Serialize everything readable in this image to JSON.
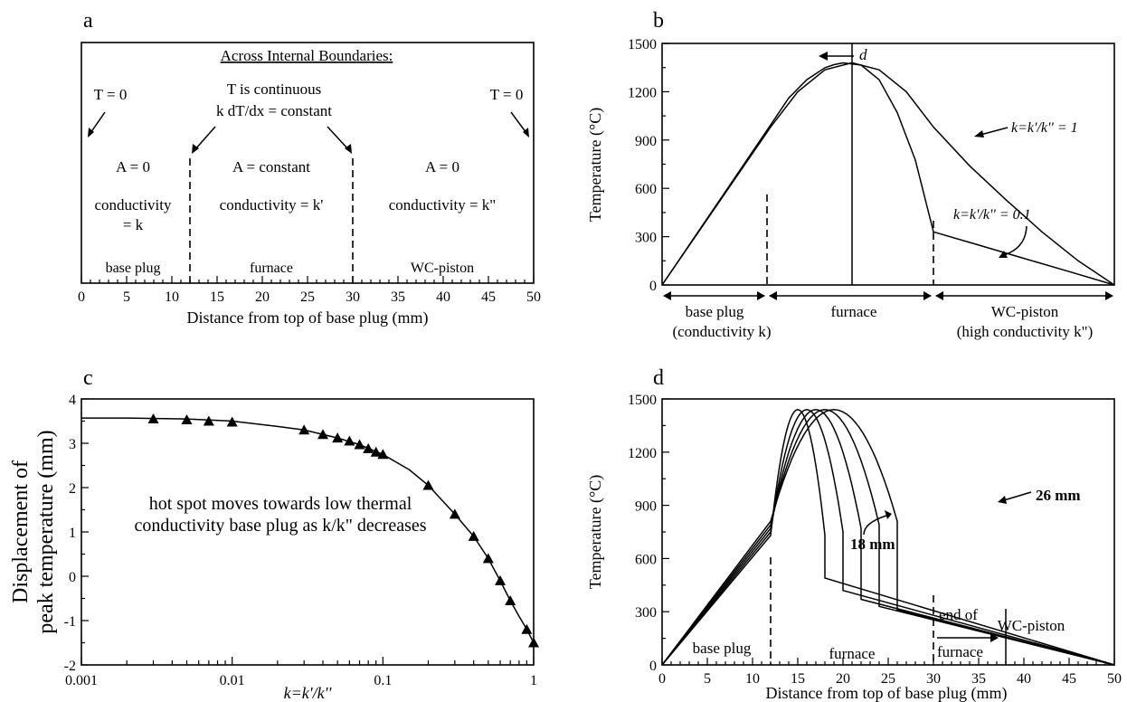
{
  "chart_data": [
    {
      "panel": "a",
      "type": "diagram",
      "xlabel": "Distance from top of base plug (mm)",
      "xlim": [
        0,
        50
      ],
      "xticks": [
        0,
        5,
        10,
        15,
        20,
        25,
        30,
        35,
        40,
        45,
        50
      ],
      "boundaries": [
        12,
        30
      ],
      "texts": {
        "header": "Across Internal Boundaries:",
        "t_left": "T = 0",
        "t_right": "T = 0",
        "cont1": "T is continuous",
        "cont2": "k dT/dx = constant",
        "plug_a": "A = 0",
        "plug_c1": "conductivity",
        "plug_c2": "= k",
        "furn_a": "A = constant",
        "furn_c": "conductivity = k'",
        "pist_a": "A = 0",
        "pist_c": "conductivity = k\"",
        "r_plug": "base plug",
        "r_furn": "furnace",
        "r_pist": "WC-piston"
      }
    },
    {
      "panel": "b",
      "type": "line",
      "ylabel": "Temperature (°C)",
      "xlim": [
        0,
        50
      ],
      "ylim": [
        0,
        1500
      ],
      "yticks": [
        0,
        300,
        600,
        900,
        1200,
        1500
      ],
      "boundaries": [
        12,
        30
      ],
      "marker_x": 21,
      "series": [
        {
          "name": "k=k'/k'' = 1",
          "x": [
            0,
            4,
            8,
            12,
            15,
            18,
            21,
            24,
            27,
            30,
            34,
            38,
            42,
            46,
            50
          ],
          "y": [
            0,
            327,
            654,
            981,
            1200,
            1336,
            1380,
            1336,
            1200,
            981,
            740,
            530,
            330,
            150,
            0
          ]
        },
        {
          "name": "k=k'/k'' = 0.1",
          "x": [
            0,
            6,
            12,
            14,
            16,
            18,
            19,
            20,
            22,
            24,
            26,
            28,
            30,
            35,
            40,
            45,
            50
          ],
          "y": [
            0,
            497,
            994,
            1161,
            1275,
            1349,
            1368,
            1379,
            1366,
            1274,
            1070,
            775,
            330,
            248,
            165,
            83,
            0
          ]
        }
      ],
      "texts": {
        "label_d": "d",
        "label_1": "k=k'/k'' = 1",
        "label_01": "k=k'/k'' = 0.1",
        "r_plug1": "base plug",
        "r_plug2": "(conductivity k)",
        "r_furn": "furnace",
        "r_pist1": "WC-piston",
        "r_pist2": "(high conductivity k\")"
      }
    },
    {
      "panel": "c",
      "type": "scatter",
      "xlabel": "k=k'/k''",
      "ylabel": "Displacement of peak temperature (mm)",
      "ylabel_lines": [
        "Displacement of",
        "peak temperature (mm)"
      ],
      "xscale": "log",
      "xlim": [
        0.001,
        1
      ],
      "ylim": [
        -2,
        4
      ],
      "xticks": [
        "0.001",
        "0.01",
        "0.1",
        "1"
      ],
      "yticks": [
        -2,
        -1,
        0,
        1,
        2,
        3,
        4
      ],
      "points": {
        "x": [
          0.003,
          0.005,
          0.007,
          0.01,
          0.03,
          0.04,
          0.05,
          0.06,
          0.07,
          0.08,
          0.09,
          0.1,
          0.2,
          0.3,
          0.4,
          0.5,
          0.6,
          0.7,
          0.9,
          1.0
        ],
        "y": [
          3.55,
          3.53,
          3.5,
          3.48,
          3.3,
          3.2,
          3.12,
          3.05,
          2.97,
          2.88,
          2.8,
          2.75,
          2.05,
          1.4,
          0.9,
          0.4,
          -0.1,
          -0.55,
          -1.2,
          -1.5
        ]
      },
      "curve": {
        "x": [
          0.001,
          0.002,
          0.005,
          0.01,
          0.02,
          0.03,
          0.05,
          0.07,
          0.1,
          0.15,
          0.2,
          0.3,
          0.4,
          0.5,
          0.6,
          0.7,
          0.8,
          0.9,
          1.0
        ],
        "y": [
          3.57,
          3.57,
          3.55,
          3.5,
          3.38,
          3.3,
          3.12,
          2.97,
          2.75,
          2.4,
          2.05,
          1.4,
          0.9,
          0.4,
          -0.1,
          -0.55,
          -0.9,
          -1.2,
          -1.5
        ]
      },
      "texts": {
        "note1": "hot spot moves towards low thermal",
        "note2": "conductivity base plug as k/k\" decreases"
      }
    },
    {
      "panel": "d",
      "type": "line",
      "xlabel": "Distance from top of base plug (mm)",
      "ylabel": "Temperature (°C)",
      "xlim": [
        0,
        50
      ],
      "ylim": [
        0,
        1500
      ],
      "xticks": [
        0,
        5,
        10,
        15,
        20,
        25,
        30,
        35,
        40,
        45,
        50
      ],
      "yticks": [
        0,
        300,
        600,
        900,
        1200,
        1500
      ],
      "boundaries": [
        12,
        30
      ],
      "end_marker_x": 38,
      "series_end_mm": [
        18,
        20,
        22,
        24,
        26
      ],
      "series_start_y": [
        730,
        750,
        770,
        790,
        810
      ],
      "series_end_y": [
        490,
        420,
        370,
        330,
        310
      ],
      "peak_y": 1440,
      "texts": {
        "label_18": "18 mm",
        "label_26": "26 mm",
        "r_plug": "base plug",
        "r_furn": "furnace",
        "r_end1": "end of",
        "r_end2": "furnace",
        "r_pist": "WC-piston"
      }
    }
  ]
}
